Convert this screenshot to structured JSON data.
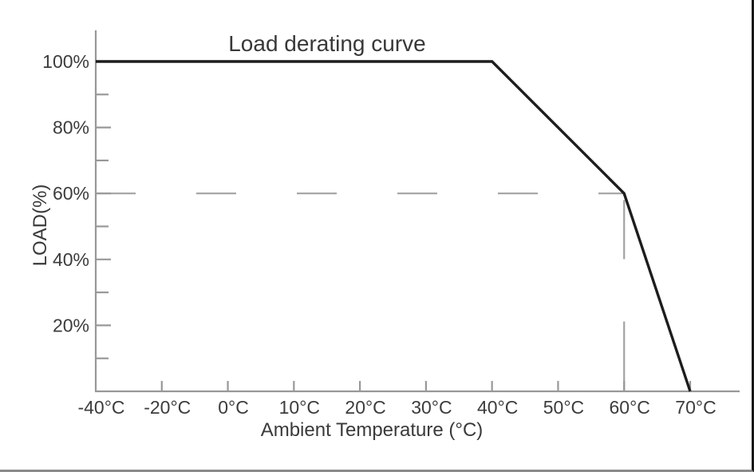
{
  "chart_data": {
    "type": "line",
    "title": "Load derating curve",
    "xlabel": "Ambient Temperature  (°C)",
    "ylabel": "LOAD(%)",
    "x_tick_labels": [
      "-40°C",
      "-20°C",
      "0°C",
      "10°C",
      "20°C",
      "30°C",
      "40°C",
      "50°C",
      "60°C",
      "70°C"
    ],
    "x_tick_values": [
      -40,
      -20,
      0,
      10,
      20,
      30,
      40,
      50,
      60,
      70
    ],
    "y_tick_labels": [
      "100%",
      "80%",
      "60%",
      "40%",
      "20%"
    ],
    "y_tick_values": [
      100,
      80,
      60,
      40,
      20
    ],
    "y_minor_tick_values": [
      90,
      70,
      50,
      30,
      10
    ],
    "ylim": [
      0,
      110
    ],
    "xlim_note": "x axis is categorical-spaced: 20°C steps below 0°C, 10°C steps above",
    "grid": false,
    "legend": "none",
    "series": [
      {
        "name": "load-derating-line",
        "points": [
          [
            -40,
            100
          ],
          [
            40,
            100
          ],
          [
            60,
            60
          ],
          [
            70,
            0
          ]
        ]
      }
    ],
    "reference_lines": [
      {
        "name": "60-percent-load-guide",
        "orientation": "horizontal",
        "value": 60,
        "from_x": -40,
        "to_x": 60,
        "style": "dashed"
      },
      {
        "name": "60c-temperature-guide",
        "orientation": "vertical",
        "value": 60,
        "from_y": 0,
        "to_y": 58,
        "style": "dashed"
      }
    ],
    "colors": {
      "curve": "#1d1d1d",
      "axis": "#989898",
      "guide": "#a2a2a2",
      "text": "#3a3a3a",
      "background": "#ffffff",
      "frame_right": "#161616",
      "frame_bottom": "#8a8a8a"
    }
  }
}
